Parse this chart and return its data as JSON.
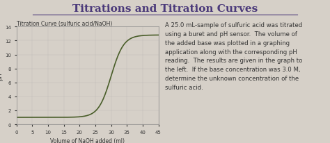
{
  "title": "Titrations and Titration Curves",
  "graph_title": "Titration Curve (sulfuric acid/NaOH)",
  "xlabel": "Volume of NaOH added (ml)",
  "ylabel": "pH",
  "xlim": [
    0,
    45
  ],
  "ylim": [
    0,
    14
  ],
  "xticks": [
    0,
    5,
    10,
    15,
    20,
    25,
    30,
    35,
    40,
    45
  ],
  "yticks": [
    0,
    2,
    4,
    6,
    8,
    10,
    12,
    14
  ],
  "curve_color": "#4a5e2a",
  "bg_color": "#d6d0c8",
  "text_color": "#333333",
  "title_color": "#4b3a7a",
  "text_lines": [
    "A 25.0 mL-sample of sulfuric acid was titrated",
    "using a buret and pH sensor.  The volume of",
    "the added base was plotted in a graphing",
    "application along with the corresponding pH",
    "reading.  The results are given in the graph to",
    "the left.  If the base concentration was 3.0 M,",
    "determine the unknown concentration of the",
    "sulfuric acid."
  ],
  "equivalence_volume": 30,
  "initial_ph": 1.0,
  "final_ph": 12.8
}
